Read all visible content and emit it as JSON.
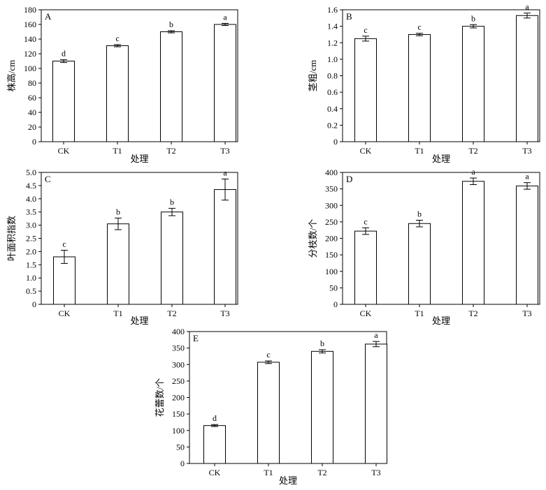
{
  "chart_data": [
    {
      "panel": "A",
      "type": "bar",
      "categories": [
        "CK",
        "T1",
        "T2",
        "T3"
      ],
      "values": [
        110,
        131,
        150,
        160
      ],
      "errors": [
        2,
        1.5,
        1.5,
        1.5
      ],
      "letters": [
        "d",
        "c",
        "b",
        "a"
      ],
      "ylabel": "株高/cm",
      "xlabel": "处理",
      "ylim": [
        0,
        180
      ],
      "yticks": [
        "0",
        "20",
        "40",
        "60",
        "80",
        "100",
        "120",
        "140",
        "160",
        "180"
      ]
    },
    {
      "panel": "B",
      "type": "bar",
      "categories": [
        "CK",
        "T1",
        "T2",
        "T3"
      ],
      "values": [
        1.25,
        1.3,
        1.4,
        1.53
      ],
      "errors": [
        0.03,
        0.015,
        0.02,
        0.03
      ],
      "letters": [
        "c",
        "c",
        "b",
        "a"
      ],
      "ylabel": "茎粗/cm",
      "xlabel": "处理",
      "ylim": [
        0,
        1.6
      ],
      "yticks": [
        "0",
        "0.2",
        "0.4",
        "0.6",
        "0.8",
        "1.0",
        "1.2",
        "1.4",
        "1.6"
      ]
    },
    {
      "panel": "C",
      "type": "bar",
      "categories": [
        "CK",
        "T1",
        "T2",
        "T3"
      ],
      "values": [
        1.8,
        3.05,
        3.5,
        4.35
      ],
      "errors": [
        0.25,
        0.22,
        0.14,
        0.4
      ],
      "letters": [
        "c",
        "b",
        "b",
        "a"
      ],
      "ylabel": "叶面积指数",
      "xlabel": "处理",
      "ylim": [
        0,
        5
      ],
      "yticks": [
        "0",
        "0.5",
        "1.0",
        "1.5",
        "2.0",
        "2.5",
        "3.0",
        "3.5",
        "4.0",
        "4.5",
        "5.0"
      ]
    },
    {
      "panel": "D",
      "type": "bar",
      "categories": [
        "CK",
        "T1",
        "T2",
        "T3"
      ],
      "values": [
        222,
        245,
        373,
        359
      ],
      "errors": [
        10,
        10,
        10,
        10
      ],
      "letters": [
        "c",
        "b",
        "a",
        "a"
      ],
      "ylabel": "分枝数/个",
      "xlabel": "处理",
      "ylim": [
        0,
        400
      ],
      "yticks": [
        "0",
        "50",
        "100",
        "150",
        "200",
        "250",
        "300",
        "350",
        "400"
      ]
    },
    {
      "panel": "E",
      "type": "bar",
      "categories": [
        "CK",
        "T1",
        "T2",
        "T3"
      ],
      "values": [
        115,
        307,
        340,
        362
      ],
      "errors": [
        3,
        4,
        5,
        8
      ],
      "letters": [
        "d",
        "c",
        "b",
        "a"
      ],
      "ylabel": "花蕾数/个",
      "xlabel": "处理",
      "ylim": [
        0,
        400
      ],
      "yticks": [
        "0",
        "50",
        "100",
        "150",
        "200",
        "250",
        "300",
        "350",
        "400"
      ]
    }
  ]
}
